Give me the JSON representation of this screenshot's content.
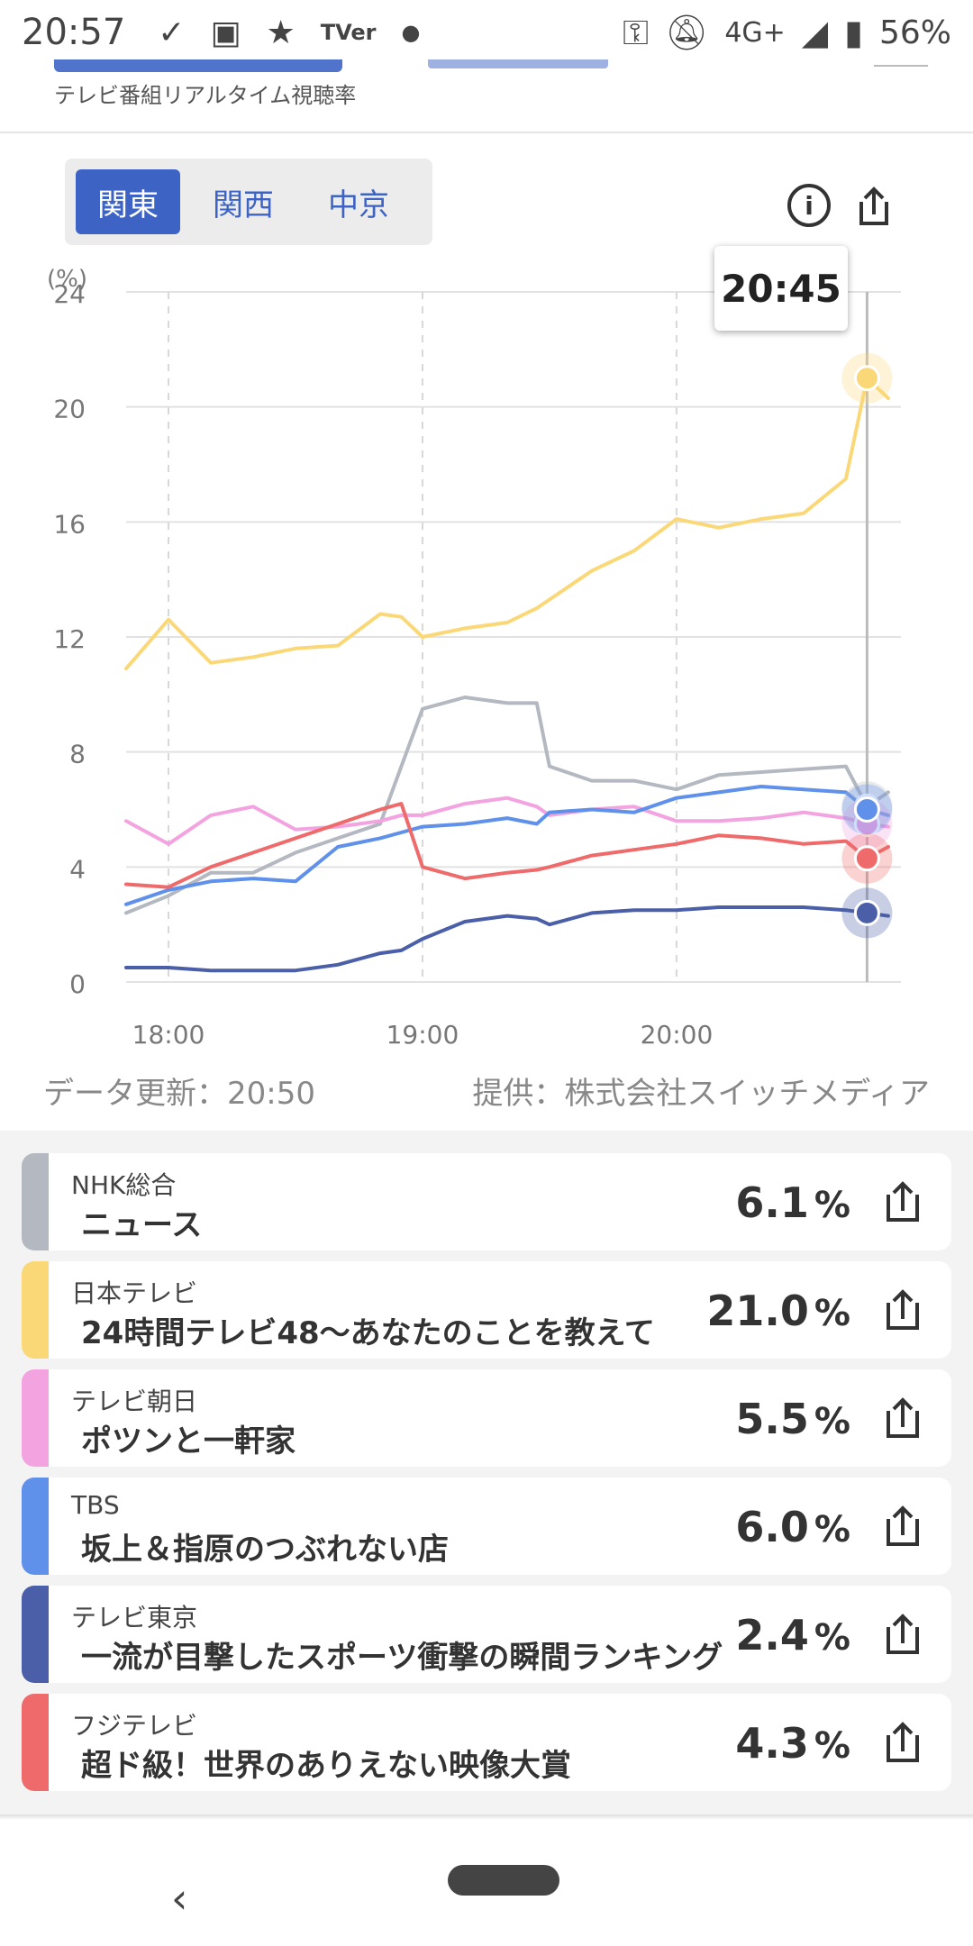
{
  "status_bar": {
    "time": "20:57",
    "app_icons": [
      "download-done-icon",
      "image-icon",
      "star-icon",
      "tver-icon",
      "dot-icon"
    ],
    "tver_label": "TVer",
    "network": "4G+",
    "battery": "56%"
  },
  "header": {
    "subtitle": "テレビ番組リアルタイム視聴率"
  },
  "region_tabs": [
    {
      "label": "関東",
      "active": true
    },
    {
      "label": "関西",
      "active": false
    },
    {
      "label": "中京",
      "active": false
    }
  ],
  "tooltip_time": "20:45",
  "meta": {
    "updated": "データ更新：20:50",
    "provider": "提供：株式会社スイッチメディア"
  },
  "chart_data": {
    "type": "line",
    "ylabel": "(%)",
    "ylim": [
      0,
      24
    ],
    "yticks": [
      "0",
      "4",
      "8",
      "12",
      "16",
      "20",
      "24"
    ],
    "xticks": [
      "18:00",
      "19:00",
      "20:00"
    ],
    "x": [
      "17:50",
      "18:00",
      "18:10",
      "18:20",
      "18:30",
      "18:40",
      "18:50",
      "18:55",
      "19:00",
      "19:10",
      "19:20",
      "19:27",
      "19:30",
      "19:40",
      "19:50",
      "20:00",
      "20:10",
      "20:20",
      "20:30",
      "20:40",
      "20:45",
      "20:50"
    ],
    "cursor_time": "20:45",
    "series": [
      {
        "name": "NHK総合",
        "color": "#b4b8c0",
        "values": [
          2.4,
          3.0,
          3.8,
          3.8,
          4.5,
          5.0,
          5.5,
          7.5,
          9.5,
          9.9,
          9.7,
          9.7,
          7.5,
          7.0,
          7.0,
          6.7,
          7.2,
          7.3,
          7.4,
          7.5,
          6.1,
          6.6
        ]
      },
      {
        "name": "日本テレビ",
        "color": "#fbd877",
        "values": [
          10.9,
          12.6,
          11.1,
          11.3,
          11.6,
          11.7,
          12.8,
          12.7,
          12.0,
          12.3,
          12.5,
          13.0,
          13.3,
          14.3,
          15.0,
          16.1,
          15.8,
          16.1,
          16.3,
          17.5,
          21.0,
          20.3
        ]
      },
      {
        "name": "テレビ朝日",
        "color": "#f2a3e0",
        "values": [
          5.6,
          4.8,
          5.8,
          6.1,
          5.3,
          5.4,
          5.6,
          5.8,
          5.8,
          6.2,
          6.4,
          6.1,
          5.8,
          6.0,
          6.1,
          5.6,
          5.6,
          5.7,
          5.9,
          5.7,
          5.5,
          5.4
        ]
      },
      {
        "name": "TBS",
        "color": "#5f90ea",
        "values": [
          2.7,
          3.2,
          3.5,
          3.6,
          3.5,
          4.7,
          5.0,
          5.2,
          5.4,
          5.5,
          5.7,
          5.5,
          5.9,
          6.0,
          5.9,
          6.4,
          6.6,
          6.8,
          6.7,
          6.6,
          6.0,
          5.8
        ]
      },
      {
        "name": "テレビ東京",
        "color": "#4a5fa8",
        "values": [
          0.5,
          0.5,
          0.4,
          0.4,
          0.4,
          0.6,
          1.0,
          1.1,
          1.5,
          2.1,
          2.3,
          2.2,
          2.0,
          2.4,
          2.5,
          2.5,
          2.6,
          2.6,
          2.6,
          2.5,
          2.4,
          2.3
        ]
      },
      {
        "name": "フジテレビ",
        "color": "#ef6a6a",
        "values": [
          3.4,
          3.3,
          4.0,
          4.5,
          5.0,
          5.5,
          6.0,
          6.2,
          4.0,
          3.6,
          3.8,
          3.9,
          4.0,
          4.4,
          4.6,
          4.8,
          5.1,
          5.0,
          4.8,
          4.9,
          4.3,
          4.7
        ]
      }
    ]
  },
  "channels": [
    {
      "name": "NHK総合",
      "program": "ニュース",
      "rating": "6.1",
      "pct": "%",
      "color": "#b4b8c0"
    },
    {
      "name": "日本テレビ",
      "program": "24時間テレビ48〜あなたのことを教えて",
      "rating": "21.0",
      "pct": "%",
      "color": "#fbd877"
    },
    {
      "name": "テレビ朝日",
      "program": "ポツンと一軒家",
      "rating": "5.5",
      "pct": "%",
      "color": "#f2a3e0"
    },
    {
      "name": "TBS",
      "program": "坂上＆指原のつぶれない店",
      "rating": "6.0",
      "pct": "%",
      "color": "#5f90ea"
    },
    {
      "name": "テレビ東京",
      "program": "一流が目撃したスポーツ衝撃の瞬間ランキング",
      "rating": "2.4",
      "pct": "%",
      "color": "#4a5fa8"
    },
    {
      "name": "フジテレビ",
      "program": "超ド級！世界のありえない映像大賞",
      "rating": "4.3",
      "pct": "%",
      "color": "#ef6a6a"
    }
  ]
}
